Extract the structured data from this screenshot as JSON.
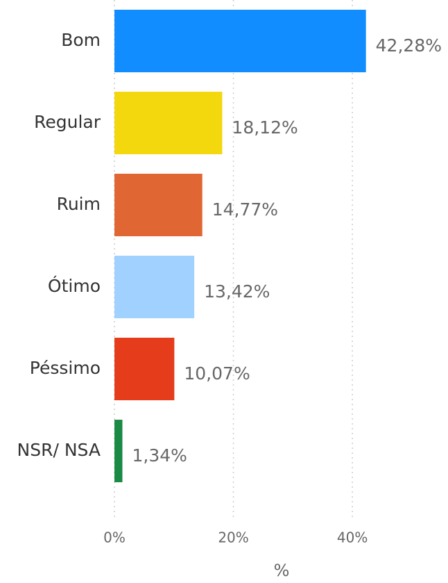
{
  "chart_data": {
    "type": "bar",
    "orientation": "horizontal",
    "categories": [
      "Bom",
      "Regular",
      "Ruim",
      "Ótimo",
      "Péssimo",
      "NSR/ NSA"
    ],
    "values": [
      42.28,
      18.12,
      14.77,
      13.42,
      10.07,
      1.34
    ],
    "value_labels": [
      "42,28%",
      "18,12%",
      "14,77%",
      "13,42%",
      "10,07%",
      "1,34%"
    ],
    "colors": [
      "#118dff",
      "#f2d80c",
      "#e06633",
      "#a0d1ff",
      "#e53c1b",
      "#1a8a45"
    ],
    "xlim": [
      0,
      45
    ],
    "xticks": [
      {
        "value": 0,
        "label": "0%"
      },
      {
        "value": 20,
        "label": "20%"
      },
      {
        "value": 40,
        "label": "40%"
      }
    ],
    "xlabel": "%",
    "grid": true
  }
}
